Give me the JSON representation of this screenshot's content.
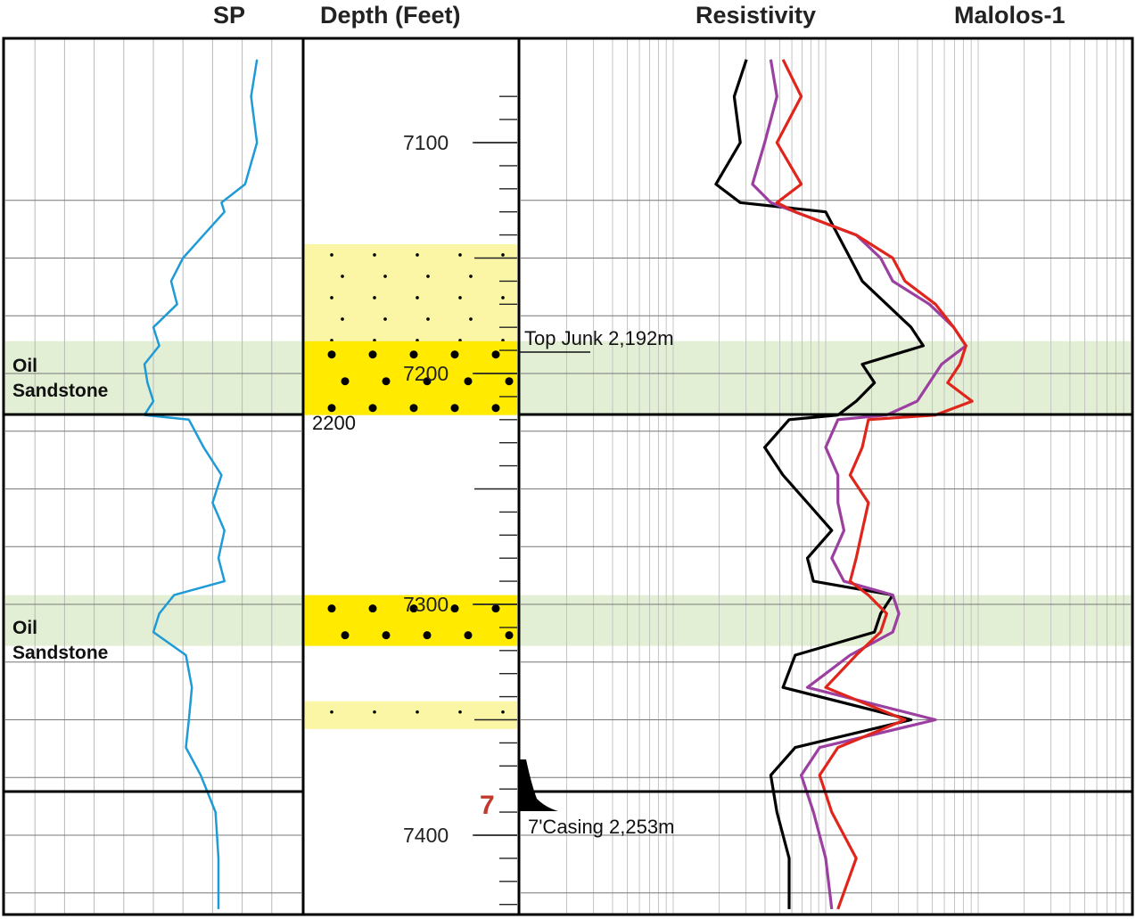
{
  "headers": {
    "sp": "SP",
    "depth": "Depth (Feet)",
    "resistivity": "Resistivity",
    "well": "Malolos-1"
  },
  "zones": [
    {
      "label_line1": "Oil",
      "label_line2": "Sandstone",
      "top_ft": 7186,
      "bottom_ft": 7218
    },
    {
      "label_line1": "Oil",
      "label_line2": "Sandstone",
      "top_ft": 7296,
      "bottom_ft": 7318
    }
  ],
  "annotations": {
    "top_junk": "Top Junk 2,192m",
    "casing": "7'Casing 2,253m",
    "casing_size": "7",
    "meter_marker": "2200"
  },
  "colors": {
    "sp_curve": "#1e9bd7",
    "deep_resistivity": "#000000",
    "medium_resistivity": "#9b3fa0",
    "shallow_resistivity": "#e0261c",
    "oil_zone": "#e3efd4",
    "sand_light": "#fbf6a6",
    "sand_dark": "#ffea00"
  },
  "chart_data": {
    "type": "line",
    "title": "Malolos-1",
    "xlabel": "",
    "ylabel": "Depth (Feet)",
    "ylim": [
      7060,
      7433
    ],
    "depth_ticks": [
      7100,
      7200,
      7300,
      7400
    ],
    "lithology": [
      {
        "top_ft": 7144,
        "bottom_ft": 7186,
        "type": "sandstone",
        "shade": "light"
      },
      {
        "top_ft": 7186,
        "bottom_ft": 7218,
        "type": "sandstone",
        "shade": "dark"
      },
      {
        "top_ft": 7296,
        "bottom_ft": 7318,
        "type": "sandstone",
        "shade": "dark"
      },
      {
        "top_ft": 7342,
        "bottom_ft": 7354,
        "type": "sandstone",
        "shade": "light"
      }
    ],
    "series": [
      {
        "key": "sp",
        "xrange": [
          0,
          1
        ],
        "depth": [
          7064,
          7080,
          7100,
          7118,
          7126,
          7130,
          7140,
          7150,
          7160,
          7170,
          7180,
          7188,
          7196,
          7204,
          7212,
          7218,
          7220,
          7232,
          7244,
          7256,
          7268,
          7280,
          7290,
          7296,
          7304,
          7312,
          7322,
          7336,
          7350,
          7362,
          7374,
          7390,
          7410,
          7432
        ],
        "values": [
          0.85,
          0.83,
          0.85,
          0.81,
          0.73,
          0.74,
          0.67,
          0.6,
          0.56,
          0.58,
          0.5,
          0.52,
          0.47,
          0.48,
          0.5,
          0.47,
          0.62,
          0.67,
          0.73,
          0.7,
          0.74,
          0.72,
          0.74,
          0.57,
          0.52,
          0.5,
          0.61,
          0.63,
          0.62,
          0.61,
          0.66,
          0.71,
          0.72,
          0.72
        ]
      },
      {
        "key": "deep",
        "xrange": [
          0,
          1
        ],
        "depth": [
          7064,
          7080,
          7100,
          7118,
          7126,
          7130,
          7140,
          7150,
          7160,
          7170,
          7180,
          7188,
          7196,
          7204,
          7212,
          7218,
          7220,
          7232,
          7244,
          7256,
          7268,
          7280,
          7290,
          7296,
          7304,
          7312,
          7322,
          7336,
          7350,
          7362,
          7374,
          7390,
          7410,
          7432
        ],
        "values": [
          0.37,
          0.35,
          0.36,
          0.32,
          0.36,
          0.5,
          0.52,
          0.54,
          0.56,
          0.6,
          0.64,
          0.66,
          0.56,
          0.58,
          0.55,
          0.52,
          0.44,
          0.4,
          0.43,
          0.47,
          0.51,
          0.47,
          0.48,
          0.61,
          0.59,
          0.58,
          0.45,
          0.43,
          0.64,
          0.45,
          0.41,
          0.42,
          0.44,
          0.44
        ]
      },
      {
        "key": "medium",
        "xrange": [
          0,
          1
        ],
        "depth": [
          7064,
          7080,
          7100,
          7118,
          7126,
          7130,
          7140,
          7150,
          7160,
          7170,
          7180,
          7188,
          7196,
          7204,
          7212,
          7218,
          7220,
          7232,
          7244,
          7256,
          7268,
          7280,
          7290,
          7296,
          7304,
          7312,
          7322,
          7336,
          7350,
          7362,
          7374,
          7390,
          7410,
          7432
        ],
        "values": [
          0.41,
          0.42,
          0.4,
          0.38,
          0.41,
          0.45,
          0.55,
          0.59,
          0.61,
          0.67,
          0.71,
          0.73,
          0.69,
          0.67,
          0.65,
          0.6,
          0.52,
          0.5,
          0.52,
          0.52,
          0.53,
          0.51,
          0.53,
          0.61,
          0.62,
          0.61,
          0.54,
          0.47,
          0.68,
          0.49,
          0.46,
          0.48,
          0.5,
          0.51
        ]
      },
      {
        "key": "shallow",
        "xrange": [
          0,
          1
        ],
        "depth": [
          7064,
          7080,
          7100,
          7118,
          7126,
          7130,
          7140,
          7150,
          7160,
          7170,
          7180,
          7188,
          7196,
          7204,
          7212,
          7218,
          7220,
          7232,
          7244,
          7256,
          7268,
          7280,
          7290,
          7296,
          7304,
          7312,
          7322,
          7336,
          7350,
          7362,
          7374,
          7390,
          7410,
          7432
        ],
        "values": [
          0.43,
          0.46,
          0.42,
          0.46,
          0.42,
          0.45,
          0.55,
          0.61,
          0.63,
          0.68,
          0.71,
          0.73,
          0.72,
          0.7,
          0.74,
          0.68,
          0.57,
          0.56,
          0.54,
          0.57,
          0.56,
          0.55,
          0.54,
          0.57,
          0.6,
          0.59,
          0.55,
          0.5,
          0.63,
          0.52,
          0.49,
          0.51,
          0.55,
          0.52
        ]
      }
    ]
  }
}
